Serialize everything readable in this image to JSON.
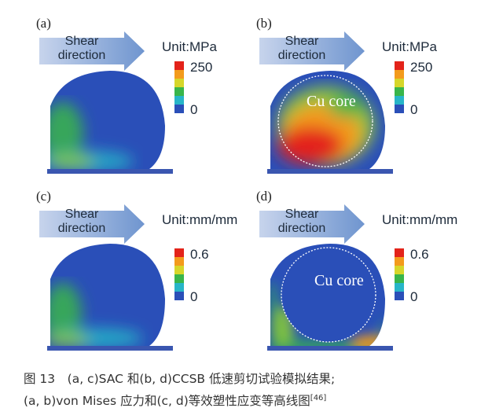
{
  "panels": [
    {
      "label": "(a)",
      "arrow": [
        "Shear",
        "direction"
      ],
      "unit": "Unit:MPa",
      "cb_max": "250",
      "cb_min": "0"
    },
    {
      "label": "(b)",
      "arrow": [
        "Shear",
        "direction"
      ],
      "unit": "Unit:MPa",
      "cb_max": "250",
      "cb_min": "0",
      "core": "Cu core"
    },
    {
      "label": "(c)",
      "arrow": [
        "Shear",
        "direction"
      ],
      "unit": "Unit:mm/mm",
      "cb_max": "0.6",
      "cb_min": "0"
    },
    {
      "label": "(d)",
      "arrow": [
        "Shear",
        "direction"
      ],
      "unit": "Unit:mm/mm",
      "cb_max": "0.6",
      "cb_min": "0",
      "core": "Cu core"
    }
  ],
  "colorbar_colors": [
    "#e3231a",
    "#f39b1c",
    "#d6d62a",
    "#39b54a",
    "#27b5c8",
    "#2a4fb8"
  ],
  "caption": {
    "line1": "图 13　(a, c)SAC 和(b, d)CCSB 低速剪切试验模拟结果;",
    "line2": "(a, b)von Mises 应力和(c, d)等效塑性应变等高线图",
    "ref": "[46]"
  }
}
